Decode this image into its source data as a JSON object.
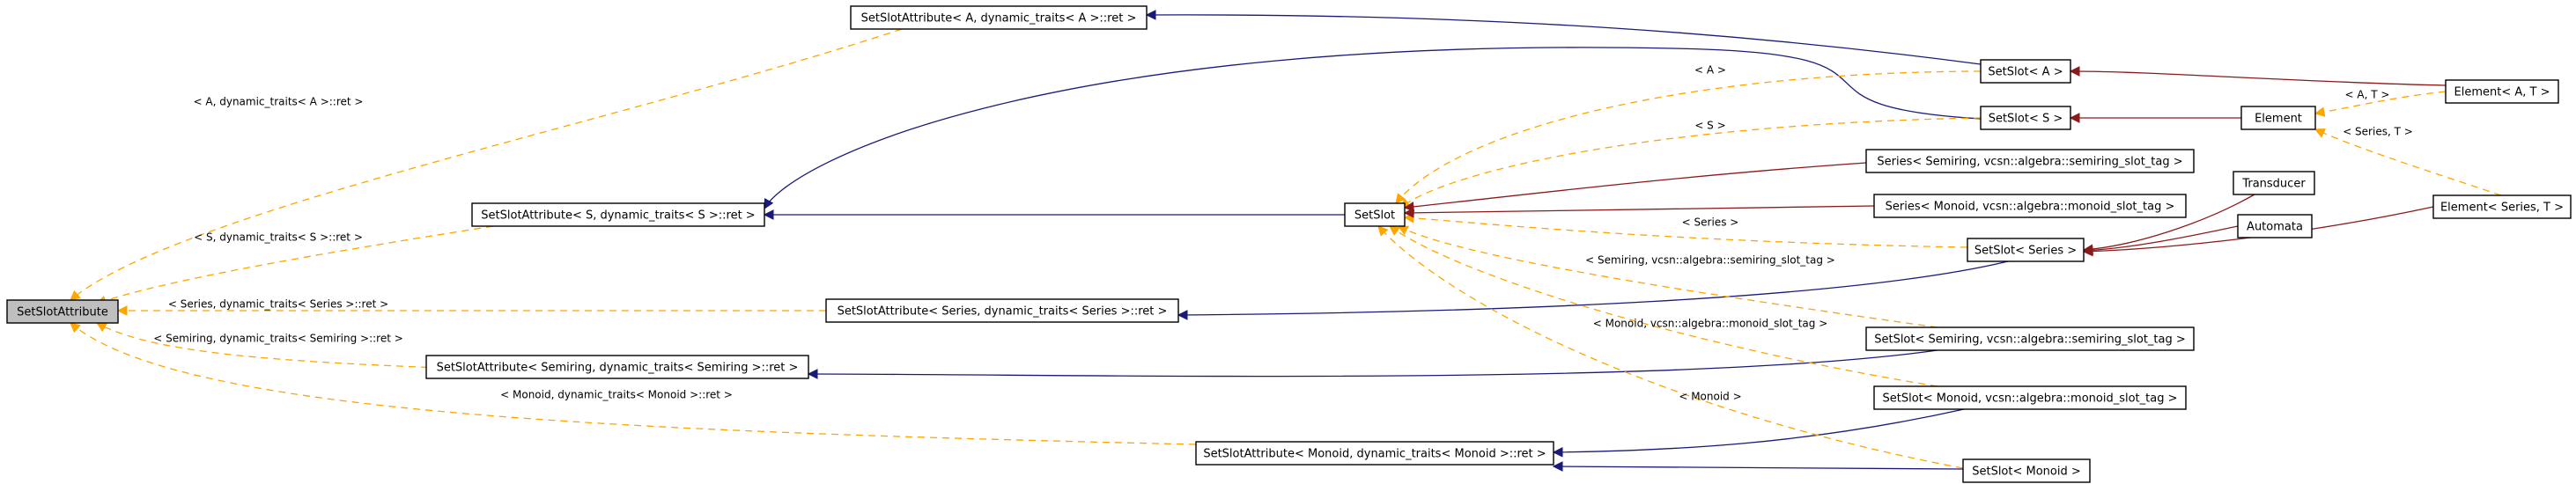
{
  "nodes": [
    {
      "id": "root",
      "label": "SetSlotAttribute"
    },
    {
      "id": "attr_A",
      "label": "SetSlotAttribute< A, dynamic_traits< A >::ret >"
    },
    {
      "id": "attr_S",
      "label": "SetSlotAttribute< S, dynamic_traits< S >::ret >"
    },
    {
      "id": "attr_Series",
      "label": "SetSlotAttribute< Series, dynamic_traits< Series >::ret >"
    },
    {
      "id": "attr_Semiring",
      "label": "SetSlotAttribute< Semiring, dynamic_traits< Semiring >::ret >"
    },
    {
      "id": "attr_Monoid",
      "label": "SetSlotAttribute< Monoid, dynamic_traits< Monoid >::ret >"
    },
    {
      "id": "setslot",
      "label": "SetSlot"
    },
    {
      "id": "setslot_A",
      "label": "SetSlot< A >"
    },
    {
      "id": "setslot_S",
      "label": "SetSlot< S >"
    },
    {
      "id": "series_semiring",
      "label": "Series< Semiring, vcsn::algebra::semiring_slot_tag >"
    },
    {
      "id": "series_monoid",
      "label": "Series< Monoid, vcsn::algebra::monoid_slot_tag >"
    },
    {
      "id": "setslot_Series",
      "label": "SetSlot< Series >"
    },
    {
      "id": "setslot_Semiring_tag",
      "label": "SetSlot< Semiring, vcsn::algebra::semiring_slot_tag >"
    },
    {
      "id": "setslot_Monoid_tag",
      "label": "SetSlot< Monoid, vcsn::algebra::monoid_slot_tag >"
    },
    {
      "id": "setslot_Monoid",
      "label": "SetSlot< Monoid >"
    },
    {
      "id": "element",
      "label": "Element"
    },
    {
      "id": "transducer",
      "label": "Transducer"
    },
    {
      "id": "automata",
      "label": "Automata"
    },
    {
      "id": "element_AT",
      "label": "Element< A, T >"
    },
    {
      "id": "element_SeriesT",
      "label": "Element< Series, T >"
    }
  ],
  "edges": [
    {
      "from": "attr_A",
      "to": "root",
      "kind": "template",
      "label": "< A, dynamic_traits< A >::ret >"
    },
    {
      "from": "attr_S",
      "to": "root",
      "kind": "template",
      "label": "< S, dynamic_traits< S >::ret >"
    },
    {
      "from": "attr_Series",
      "to": "root",
      "kind": "template",
      "label": "< Series, dynamic_traits< Series >::ret >"
    },
    {
      "from": "attr_Semiring",
      "to": "root",
      "kind": "template",
      "label": "< Semiring, dynamic_traits< Semiring >::ret >"
    },
    {
      "from": "attr_Monoid",
      "to": "root",
      "kind": "template",
      "label": "< Monoid, dynamic_traits< Monoid >::ret >"
    },
    {
      "from": "setslot_A",
      "to": "attr_A",
      "kind": "inherit",
      "label": ""
    },
    {
      "from": "setslot_S",
      "to": "attr_S",
      "kind": "inherit",
      "label": ""
    },
    {
      "from": "setslot",
      "to": "attr_S",
      "kind": "inherit",
      "label": ""
    },
    {
      "from": "setslot_Series",
      "to": "attr_Series",
      "kind": "inherit",
      "label": ""
    },
    {
      "from": "setslot_Semiring_tag",
      "to": "attr_Semiring",
      "kind": "inherit",
      "label": ""
    },
    {
      "from": "setslot_Monoid_tag",
      "to": "attr_Monoid",
      "kind": "inherit",
      "label": ""
    },
    {
      "from": "setslot_Monoid",
      "to": "attr_Monoid",
      "kind": "inherit",
      "label": ""
    },
    {
      "from": "setslot_A",
      "to": "setslot",
      "kind": "template",
      "label": "< A >"
    },
    {
      "from": "setslot_S",
      "to": "setslot",
      "kind": "template",
      "label": "< S >"
    },
    {
      "from": "setslot_Series",
      "to": "setslot",
      "kind": "template",
      "label": "< Series >"
    },
    {
      "from": "setslot_Semiring_tag",
      "to": "setslot",
      "kind": "template",
      "label": "< Semiring, vcsn::algebra::semiring_slot_tag >"
    },
    {
      "from": "setslot_Monoid_tag",
      "to": "setslot",
      "kind": "template",
      "label": "< Monoid, vcsn::algebra::monoid_slot_tag >"
    },
    {
      "from": "setslot_Monoid",
      "to": "setslot",
      "kind": "template",
      "label": "< Monoid >"
    },
    {
      "from": "series_semiring",
      "to": "setslot",
      "kind": "implements",
      "label": ""
    },
    {
      "from": "series_monoid",
      "to": "setslot",
      "kind": "implements",
      "label": ""
    },
    {
      "from": "element_AT",
      "to": "setslot_A",
      "kind": "implements",
      "label": ""
    },
    {
      "from": "element",
      "to": "setslot_S",
      "kind": "implements",
      "label": ""
    },
    {
      "from": "transducer",
      "to": "setslot_Series",
      "kind": "implements",
      "label": ""
    },
    {
      "from": "automata",
      "to": "setslot_Series",
      "kind": "implements",
      "label": ""
    },
    {
      "from": "element_SeriesT",
      "to": "setslot_Series",
      "kind": "implements",
      "label": ""
    },
    {
      "from": "element_AT",
      "to": "element",
      "kind": "template",
      "label": "< A, T >"
    },
    {
      "from": "element_SeriesT",
      "to": "element",
      "kind": "template",
      "label": "< Series, T >"
    }
  ],
  "colors": {
    "template_edge": "#ffa500",
    "inherit_edge": "#1a1a7a",
    "implements_edge": "#8b1a1a",
    "root_fill": "#bfbfbf",
    "node_fill": "#ffffff"
  }
}
